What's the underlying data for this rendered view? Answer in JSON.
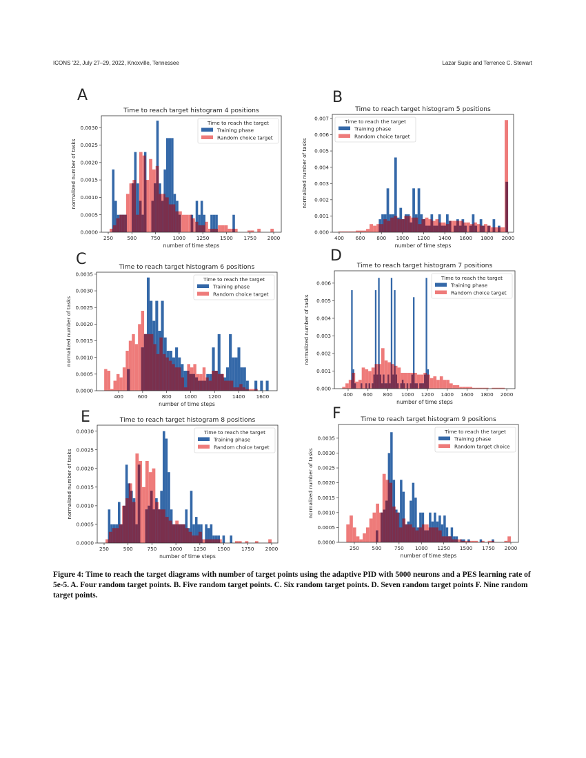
{
  "header": {
    "left": "ICONS '22, July 27–29, 2022, Knoxville, Tennessee",
    "right": "Lazar Supic and Terrence C. Stewart"
  },
  "caption": "Figure 4: Time to reach the target diagrams with number of target points using the adaptive PID with 5000 neurons and a PES learning rate of 5e-5. A. Four random target points. B. Five random target points. C. Six random target points. D. Seven random target points F. Nine random target points.",
  "colors": {
    "training": "#3468a8",
    "random": "#ee7b7a",
    "overlap": "#7b2f4c"
  },
  "chart_data": [
    {
      "panel": "A",
      "type": "histogram",
      "title": "Time to reach target histogram 4 positions",
      "xlabel": "number of time steps",
      "ylabel": "normalized number of tasks",
      "xlim": [
        177,
        2080
      ],
      "ylim": [
        0,
        0.00334
      ],
      "xticks": [
        "250",
        "500",
        "750",
        "1000",
        "1250",
        "1500",
        "1750",
        "2000"
      ],
      "yticks": [
        "0.0000",
        "0.0005",
        "0.0010",
        "0.0015",
        "0.0020",
        "0.0025",
        "0.0030"
      ],
      "legend": {
        "title": "Time to reach the target",
        "placement": "top-right"
      },
      "series": [
        {
          "name": "Training phase",
          "bin_start": 290,
          "bin_width": 26,
          "values": [
            0.0018,
            0.0009,
            0.0005,
            0.0005,
            0.0005,
            0.0005,
            0,
            0,
            0.0014,
            0.0023,
            0.0014,
            0.0009,
            0.0005,
            0.0023,
            0,
            0,
            0.0009,
            0.0014,
            0.0032,
            0.0014,
            0.0009,
            0.0018,
            0.0027,
            0.0027,
            0.0027,
            0.0011,
            0.0009,
            0.0005,
            0,
            0,
            0,
            0,
            0.0005,
            0,
            0.0009,
            0.0005,
            0.0009,
            0.0005,
            0,
            0,
            0.0005,
            0.0005,
            0.0005,
            0,
            0,
            0,
            0,
            0,
            0,
            0.0005
          ]
        },
        {
          "name": "Random choice target",
          "bin_start": 265,
          "bin_width": 34.7,
          "values": [
            0.0001,
            0.0002,
            0.0004,
            0.0005,
            0.0005,
            0.0011,
            0.0014,
            0.0015,
            0.0005,
            0.0023,
            0.0022,
            0.0015,
            0.0021,
            0.0018,
            0.0019,
            0.0011,
            0.0011,
            0.001,
            0.0008,
            0.0008,
            0.0006,
            0.0006,
            0.0005,
            0.0005,
            0.0005,
            0.0004,
            0.0003,
            0.0002,
            0.0002,
            0.0003,
            0.0001,
            0.0001,
            0.0001,
            0.0002,
            0.0002,
            0.0002,
            0.0001,
            0.0001,
            0.0001,
            0,
            0,
            0,
            5e-05,
            5e-05,
            0,
            0.0001,
            0,
            0,
            0,
            0.0001
          ]
        }
      ]
    },
    {
      "panel": "B",
      "type": "histogram",
      "title": "Time to reach target histogram 5 positions",
      "xlabel": "number of time steps",
      "ylabel": "normalized number of tasks",
      "xlim": [
        335,
        2052
      ],
      "ylim": [
        0,
        0.00725
      ],
      "xticks": [
        "400",
        "600",
        "800",
        "1000",
        "1200",
        "1400",
        "1600",
        "1800",
        "2000"
      ],
      "yticks": [
        "0.000",
        "0.001",
        "0.002",
        "0.003",
        "0.004",
        "0.005",
        "0.006",
        "0.007"
      ],
      "legend": {
        "title": "Time to reach the target",
        "placement": "top-left"
      },
      "series": [
        {
          "name": "Training phase",
          "bin_start": 775,
          "bin_width": 24.5,
          "values": [
            0.0008,
            0.0011,
            0.0011,
            0.0027,
            0.0011,
            0.0011,
            0.0046,
            0.0009,
            0.0015,
            0.0008,
            0.0011,
            0.0011,
            0.0006,
            0.0027,
            0.0011,
            0.0027,
            0.0011,
            0.0008,
            0.0004,
            0.0004,
            0.0011,
            0.0004,
            0.0004,
            0.0011,
            0.0004,
            0.0004,
            0.0011,
            0.0007,
            0,
            0.0004,
            0.0008,
            0.0004,
            0.0008,
            0.0004,
            0,
            0.0004,
            0.0011,
            0.0004,
            0,
            0.0008,
            0.0004,
            0,
            0.0004,
            0,
            0.0008,
            0,
            0.0004,
            0,
            0,
            0.0031
          ]
        },
        {
          "name": "Random choice target",
          "bin_start": 360,
          "bin_width": 32.8,
          "values": [
            0,
            5e-05,
            5e-05,
            5e-05,
            5e-05,
            5e-05,
            0.0001,
            0.0001,
            0.0001,
            0.0002,
            0.0005,
            0.0004,
            0.0005,
            0.0005,
            0.0008,
            0.0007,
            0.0009,
            0.001,
            0.0008,
            0.0008,
            0.001,
            0.001,
            0.0009,
            0.0009,
            0.0005,
            0.0008,
            0.0009,
            0.0008,
            0.0007,
            0.0008,
            0.0006,
            0.0006,
            0.0005,
            0.0007,
            0.0007,
            0.0007,
            0.0007,
            0.0006,
            0.0006,
            0.0005,
            0.0006,
            0.0005,
            0.0004,
            0.0005,
            0.0004,
            0.0003,
            0.0003,
            0.0003,
            0.0003,
            0.0069
          ]
        }
      ]
    },
    {
      "panel": "C",
      "type": "histogram",
      "title": "Time to reach target histogram 6 positions",
      "xlabel": "number of time steps",
      "ylabel": "normalized number of tasks",
      "xlim": [
        216,
        1721
      ],
      "ylim": [
        0,
        0.00356
      ],
      "xticks": [
        "400",
        "600",
        "800",
        "1000",
        "1200",
        "1400",
        "1600"
      ],
      "yticks": [
        "0.0000",
        "0.0005",
        "0.0010",
        "0.0015",
        "0.0020",
        "0.0025",
        "0.0030",
        "0.0035"
      ],
      "legend": {
        "title": "Time to reach the target",
        "placement": "top-right"
      },
      "series": [
        {
          "name": "Training phase",
          "bin_start": 470,
          "bin_width": 23.6,
          "values": [
            0.00065,
            0,
            0,
            0,
            0,
            0.0013,
            0.0017,
            0.0034,
            0.0027,
            0.0021,
            0.0027,
            0.0018,
            0.0027,
            0.0016,
            0.0012,
            0.0012,
            0.001,
            0.0013,
            0.001,
            0.0008,
            0.0006,
            0.0006,
            0.0005,
            0.0005,
            0.0004,
            0.0003,
            0.0003,
            0.0003,
            0.0005,
            0.0005,
            0.0013,
            0.0006,
            0.0017,
            0.0005,
            0.0004,
            0.0007,
            0.0017,
            0.001,
            0.001,
            0.0013,
            0.0007,
            0.0007,
            0.0003,
            0,
            0,
            0.0003,
            0,
            0.0003,
            0,
            0.0003
          ]
        },
        {
          "name": "Random choice target",
          "bin_start": 280,
          "bin_width": 25.6,
          "values": [
            0.00065,
            0.0006,
            5e-05,
            0.0003,
            0.0005,
            0.0004,
            0.0007,
            0.0012,
            0.0015,
            0.0017,
            0.0014,
            0.002,
            0.0024,
            0.0017,
            0.0017,
            0.0017,
            0.0014,
            0.0011,
            0.0016,
            0.0011,
            0.001,
            0.0009,
            0.0008,
            0.0007,
            0.0007,
            0.0004,
            0.0001,
            0.0008,
            0.0007,
            0.0008,
            0.0005,
            0.0005,
            0.0007,
            0.0004,
            0.0003,
            0.0006,
            0.0006,
            0.0005,
            0.0005,
            0.0003,
            0.0003,
            0.0003,
            0.0001,
            0.0001,
            0.0002,
            0.0001,
            5e-05,
            5e-05,
            5e-05,
            5e-05
          ]
        }
      ]
    },
    {
      "panel": "D",
      "type": "histogram",
      "title": "Time to reach target histogram 7 positions",
      "xlabel": "number of time steps",
      "ylabel": "normalized number of tasks",
      "xlim": [
        261,
        2083
      ],
      "ylim": [
        0,
        0.0067
      ],
      "xticks": [
        "400",
        "600",
        "800",
        "1000",
        "1200",
        "1400",
        "1600",
        "1800",
        "2000"
      ],
      "yticks": [
        "0.000",
        "0.001",
        "0.002",
        "0.003",
        "0.004",
        "0.005",
        "0.006"
      ],
      "legend": {
        "title": "Time to reach the target",
        "placement": "top-right"
      },
      "series": [
        {
          "name": "Training phase",
          "bin_start": 430,
          "bin_width": 16,
          "values": [
            0.0056,
            0.0011,
            0.0003,
            0,
            0,
            0,
            0.0003,
            0,
            0,
            0.0003,
            0,
            0.0003,
            0,
            0.0003,
            0.0008,
            0.0056,
            0.0008,
            0.0063,
            0.0008,
            0.0003,
            0.0008,
            0.0003,
            0.0003,
            0.0008,
            0.0003,
            0.0063,
            0.0008,
            0.0056,
            0.0008,
            0.0003,
            0,
            0.0003,
            0.0005,
            0.0003,
            0,
            0.0003,
            0,
            0.0003,
            0.0008,
            0.0052,
            0.0003,
            0.0003,
            0,
            0.0003,
            0.0003,
            0.0003,
            0.0008,
            0.0063,
            0.0011,
            0
          ]
        },
        {
          "name": "Random choice target",
          "bin_start": 340,
          "bin_width": 32.8,
          "values": [
            0.0001,
            0.0003,
            0.0005,
            0.0009,
            0.0004,
            0.0005,
            0.0012,
            0.0011,
            0.001,
            0.0012,
            0.0014,
            0.0014,
            0.0023,
            0.0016,
            0.0015,
            0.0014,
            0.0013,
            0.0012,
            0.0009,
            0.0009,
            0.0009,
            0.0009,
            0.0009,
            0.0008,
            0.0008,
            0.0009,
            0.0008,
            0.0006,
            0.0007,
            0.0005,
            0.0007,
            0.0005,
            0.0005,
            0.0003,
            0.0002,
            0.0002,
            0.0001,
            0.0001,
            0.0001,
            0.0001,
            5e-05,
            5e-05,
            5e-05,
            5e-05,
            5e-05,
            0,
            5e-05,
            5e-05,
            5e-05,
            5e-05
          ]
        }
      ]
    },
    {
      "panel": "E",
      "type": "histogram",
      "title": "Time to reach target histogram 8 positions",
      "xlabel": "number of time steps",
      "ylabel": "normalized number of tasks",
      "xlim": [
        178,
        2065
      ],
      "ylim": [
        0,
        0.00316
      ],
      "xticks": [
        "250",
        "500",
        "750",
        "1000",
        "1250",
        "1500",
        "1750",
        "2000"
      ],
      "yticks": [
        "0.0000",
        "0.0005",
        "0.0010",
        "0.0015",
        "0.0020",
        "0.0025",
        "0.0030"
      ],
      "legend": {
        "title": "Time to reach the target",
        "placement": "top-right"
      },
      "series": [
        {
          "name": "Training phase",
          "bin_start": 290,
          "bin_width": 26,
          "values": [
            0.0009,
            0.0005,
            0.0005,
            0.0005,
            0.0011,
            0.0005,
            0.001,
            0.0021,
            0.0016,
            0.0014,
            0.0012,
            0.0005,
            0.0021,
            0,
            0,
            0.0009,
            0.001,
            0.0014,
            0.0009,
            0.0012,
            0.0009,
            0.0014,
            0.003,
            0.0028,
            0.0019,
            0.0009,
            0.0005,
            0.0005,
            0.0005,
            0.0005,
            0.0005,
            0.0009,
            0.0004,
            0.0014,
            0.0005,
            0.0007,
            0.0005,
            0.0005,
            0,
            0.0005,
            0.0004,
            0.0005,
            0.0002,
            0.0002,
            0.0002,
            0,
            0.0002,
            0,
            0,
            0.0002
          ]
        },
        {
          "name": "Random choice target",
          "bin_start": 265,
          "bin_width": 34.7,
          "values": [
            0.0001,
            0.0003,
            0.0004,
            0.0004,
            0.0005,
            0.001,
            0.0012,
            0.0016,
            0.0011,
            0.0024,
            0.0022,
            0.0015,
            0.0022,
            0.0019,
            0.002,
            0.0011,
            0.0009,
            0.0009,
            0.0007,
            0.0006,
            0.0005,
            0.0006,
            0.0005,
            0.0005,
            0.0004,
            0.0003,
            0.0002,
            0.0002,
            0.0003,
            0.0001,
            0.0001,
            0.0001,
            0.0001,
            0.0001,
            0.0001,
            0,
            0,
            0,
            0,
            5e-05,
            5e-05,
            0,
            5e-05,
            0,
            0,
            5e-05,
            0,
            0,
            0,
            0.0001
          ]
        }
      ]
    },
    {
      "panel": "F",
      "type": "histogram",
      "title": "Time to reach target histogram 9 positions",
      "xlabel": "number of time steps",
      "ylabel": "normalized number of tasks",
      "xlim": [
        73,
        2085
      ],
      "ylim": [
        0,
        0.00396
      ],
      "xticks": [
        "250",
        "500",
        "750",
        "1000",
        "1250",
        "1500",
        "1750",
        "2000"
      ],
      "yticks": [
        "0.0000",
        "0.0005",
        "0.0010",
        "0.0015",
        "0.0020",
        "0.0025",
        "0.0030",
        "0.0035"
      ],
      "legend": {
        "title": "Time to reach the target",
        "placement": "top-right"
      },
      "series": [
        {
          "name": "Training phase",
          "bin_start": 490,
          "bin_width": 27,
          "values": [
            0.0004,
            0,
            0.001,
            0.0011,
            0.0014,
            0.003,
            0.0037,
            0.0021,
            0.0011,
            0.001,
            0.0021,
            0.0017,
            0.0006,
            0.0007,
            0.0014,
            0.002,
            0.0015,
            0.0005,
            0.001,
            0.001,
            0.0004,
            0.0004,
            0.001,
            0.0007,
            0.001,
            0.0007,
            0.0009,
            0.0006,
            0.0009,
            0.0005,
            0.0002,
            0.0005,
            0.0002,
            0.0002,
            0,
            0.0001,
            0.0001,
            0,
            0.0001,
            0,
            0,
            0,
            0,
            0.0001,
            0,
            0,
            0,
            0,
            0.0001,
            0
          ]
        },
        {
          "name": "Random target choice",
          "bin_start": 160,
          "bin_width": 36.8,
          "values": [
            0.0006,
            0.0009,
            0.0005,
            0.0002,
            0.0001,
            0.0003,
            0.0005,
            0.0008,
            0.001,
            0.0013,
            0.001,
            0.0023,
            0.0021,
            0.002,
            0.0012,
            0.001,
            0.0005,
            0.0008,
            0.0006,
            0.0006,
            0.0005,
            0.0004,
            0.0005,
            0.0006,
            0.0006,
            0.0005,
            0.0005,
            0.0005,
            0.0004,
            0.0002,
            0.0002,
            0.0002,
            0.0001,
            0.0001,
            0.0001,
            5e-05,
            5e-05,
            5e-05,
            5e-05,
            5e-05,
            0,
            5e-05,
            0,
            5e-05,
            5e-05,
            0,
            0,
            0,
            5e-05,
            0.0002
          ]
        }
      ]
    }
  ]
}
